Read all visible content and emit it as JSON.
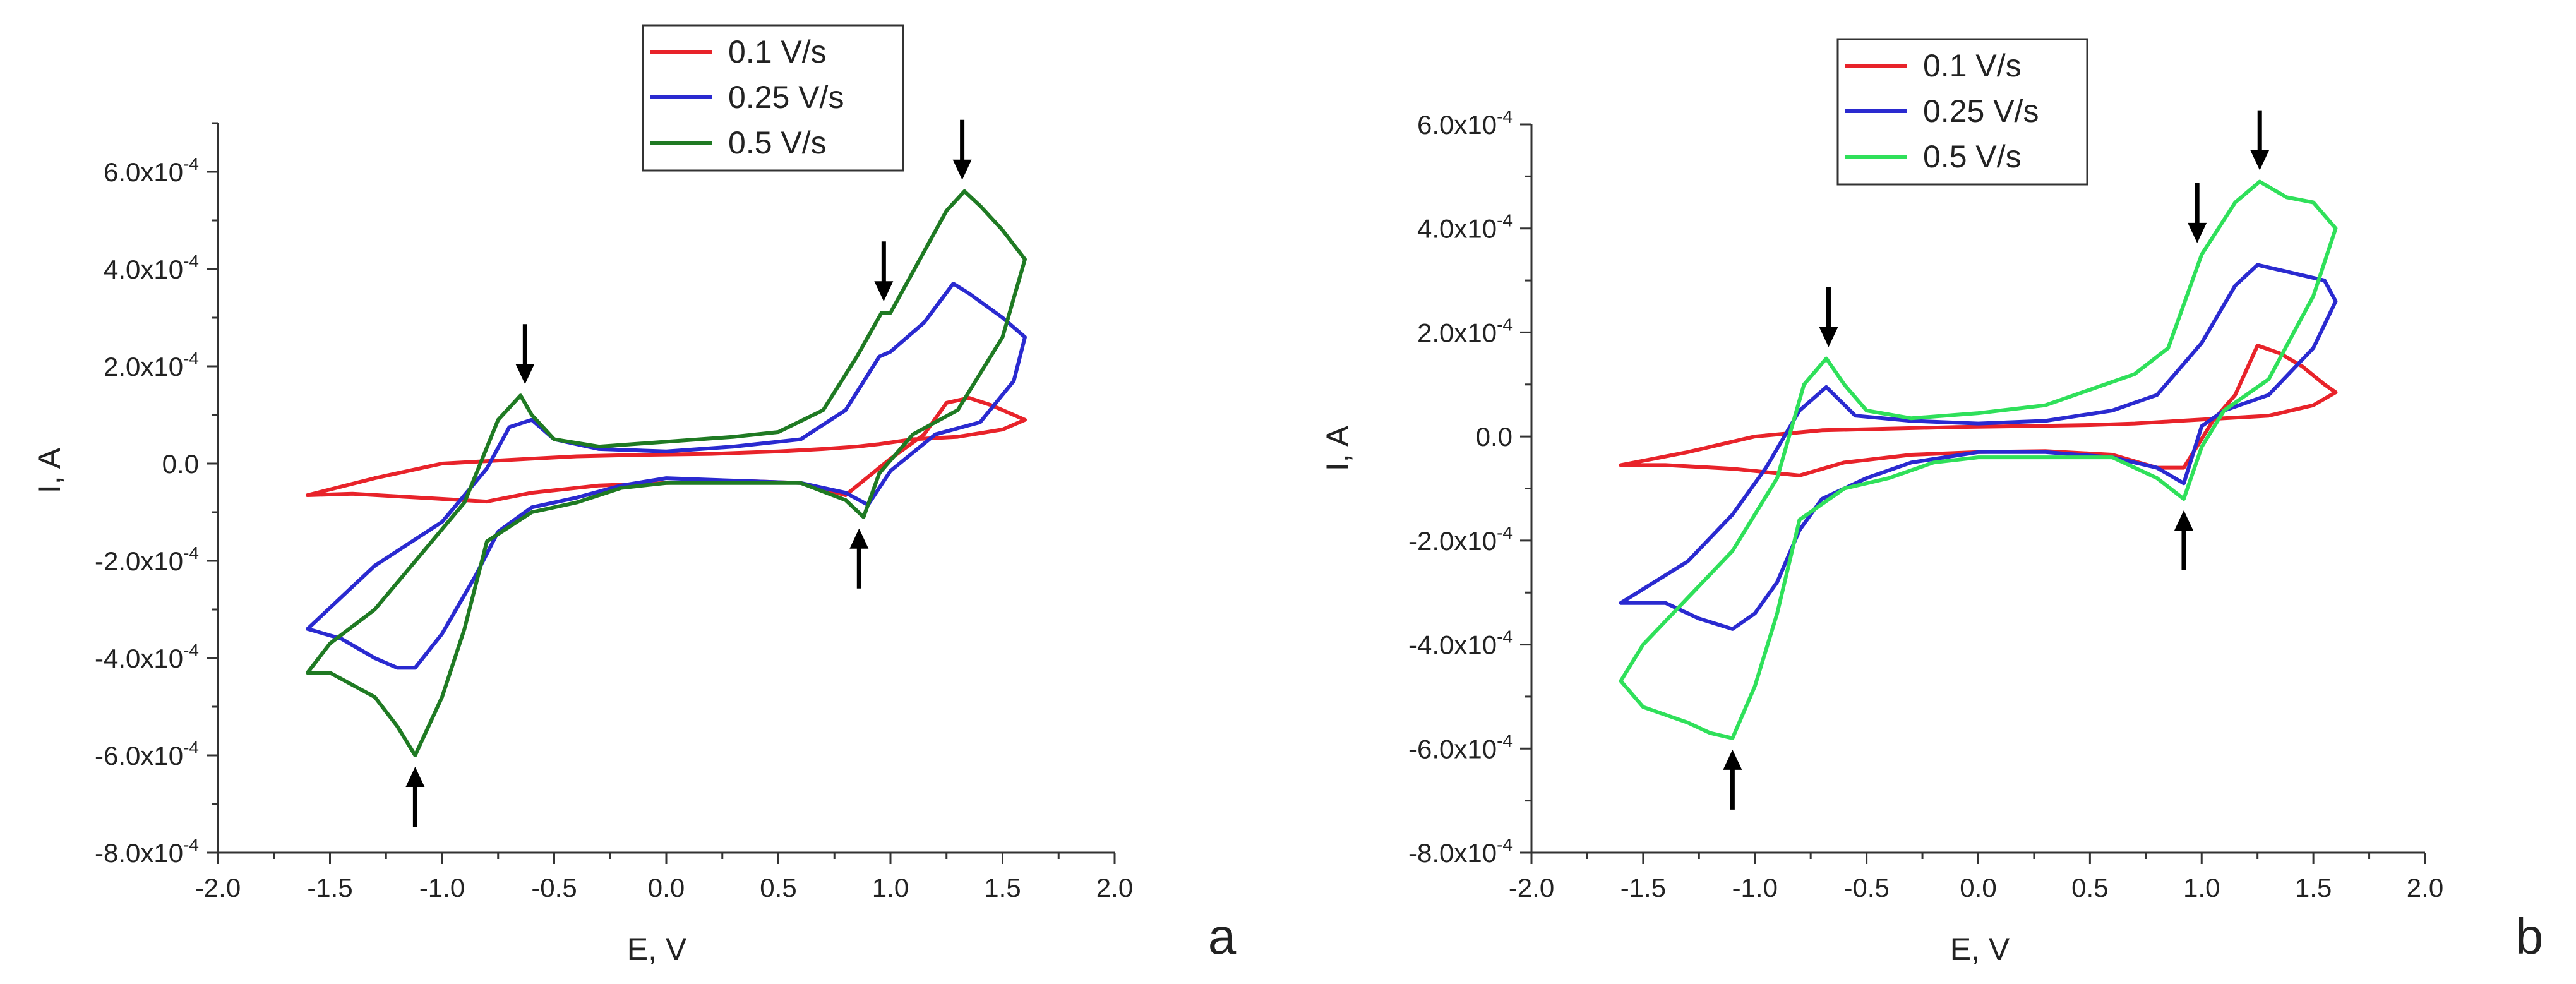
{
  "chart_data": [
    {
      "type": "line",
      "panel_label": "a",
      "xlabel": "E, V",
      "ylabel": "I, A",
      "xlim": [
        -2.0,
        2.0
      ],
      "ylim": [
        -0.0008,
        0.0007
      ],
      "x_ticks": [
        -2.0,
        -1.5,
        -1.0,
        -0.5,
        0.0,
        0.5,
        1.0,
        1.5,
        2.0
      ],
      "x_tick_labels": [
        "-2.0",
        "-1.5",
        "-1.0",
        "-0.5",
        "0.0",
        "0.5",
        "1.0",
        "1.5",
        "2.0"
      ],
      "y_ticks": [
        -0.0008,
        -0.0006,
        -0.0004,
        -0.0002,
        0.0,
        0.0002,
        0.0004,
        0.0006
      ],
      "y_tick_labels": [
        {
          "mantissa": "-8.0x10",
          "exp": "-4"
        },
        {
          "mantissa": "-6.0x10",
          "exp": "-4"
        },
        {
          "mantissa": "-4.0x10",
          "exp": "-4"
        },
        {
          "mantissa": "-2.0x10",
          "exp": "-4"
        },
        {
          "mantissa": "0.0",
          "exp": ""
        },
        {
          "mantissa": "2.0x10",
          "exp": "-4"
        },
        {
          "mantissa": "4.0x10",
          "exp": "-4"
        },
        {
          "mantissa": "6.0x10",
          "exp": "-4"
        }
      ],
      "legend": "top-center",
      "series": [
        {
          "name": "0.1 V/s",
          "color": "#e8232a",
          "x": [
            -1.6,
            -1.4,
            -1.1,
            -0.8,
            -0.6,
            -0.3,
            0.0,
            0.3,
            0.6,
            0.8,
            1.0,
            1.15,
            1.25,
            1.35,
            1.45,
            1.55,
            1.6,
            1.5,
            1.3,
            1.1,
            0.95,
            0.85,
            0.7,
            0.5,
            0.2,
            -0.1,
            -0.4,
            -0.6,
            -0.8,
            -1.0,
            -1.3,
            -1.6
          ],
          "y": [
            -6.5e-05,
            -6.2e-05,
            -7e-05,
            -7.8e-05,
            -6e-05,
            -4.5e-05,
            -4e-05,
            -3.5e-05,
            -4e-05,
            -6.5e-05,
            1e-05,
            6e-05,
            0.000125,
            0.000135,
            0.00012,
            0.0001,
            9e-05,
            7e-05,
            5.5e-05,
            5e-05,
            4e-05,
            3.5e-05,
            3e-05,
            2.5e-05,
            2e-05,
            1.8e-05,
            1.5e-05,
            1e-05,
            5e-06,
            0.0,
            -3e-05,
            -6.5e-05
          ]
        },
        {
          "name": "0.25 V/s",
          "color": "#2a2ad0",
          "x": [
            -1.6,
            -1.45,
            -1.3,
            -1.2,
            -1.12,
            -1.0,
            -0.85,
            -0.75,
            -0.6,
            -0.4,
            -0.2,
            0.0,
            0.3,
            0.6,
            0.8,
            0.9,
            1.0,
            1.2,
            1.4,
            1.55,
            1.6,
            1.5,
            1.35,
            1.28,
            1.15,
            1.0,
            0.95,
            0.8,
            0.6,
            0.3,
            0.0,
            -0.3,
            -0.5,
            -0.6,
            -0.7,
            -0.8,
            -1.0,
            -1.3,
            -1.6
          ],
          "y": [
            -0.00034,
            -0.00036,
            -0.0004,
            -0.00042,
            -0.00042,
            -0.00035,
            -0.00023,
            -0.00014,
            -9e-05,
            -7e-05,
            -4.5e-05,
            -3e-05,
            -3.5e-05,
            -4e-05,
            -6e-05,
            -8.5e-05,
            -1.5e-05,
            6e-05,
            8.5e-05,
            0.00017,
            0.00026,
            0.0003,
            0.00035,
            0.00037,
            0.00029,
            0.00023,
            0.00022,
            0.00011,
            5e-05,
            3.5e-05,
            2.5e-05,
            3e-05,
            5e-05,
            9e-05,
            7.5e-05,
            -1e-05,
            -0.00012,
            -0.00021,
            -0.00034
          ]
        },
        {
          "name": "0.5 V/s",
          "color": "#1f7a23",
          "x": [
            -1.6,
            -1.5,
            -1.3,
            -1.2,
            -1.12,
            -1.0,
            -0.9,
            -0.8,
            -0.6,
            -0.4,
            -0.2,
            0.0,
            0.3,
            0.6,
            0.8,
            0.88,
            0.95,
            1.1,
            1.3,
            1.5,
            1.6,
            1.6,
            1.5,
            1.4,
            1.33,
            1.25,
            1.0,
            0.96,
            0.85,
            0.7,
            0.5,
            0.3,
            0.0,
            -0.3,
            -0.5,
            -0.6,
            -0.65,
            -0.75,
            -0.9,
            -1.1,
            -1.3,
            -1.5,
            -1.6
          ],
          "y": [
            -0.00043,
            -0.00043,
            -0.00048,
            -0.00054,
            -0.0006,
            -0.00048,
            -0.00034,
            -0.00016,
            -0.0001,
            -8e-05,
            -5e-05,
            -4e-05,
            -4e-05,
            -4e-05,
            -7.5e-05,
            -0.00011,
            -2e-05,
            6e-05,
            0.00011,
            0.00026,
            0.00042,
            0.00042,
            0.00048,
            0.00053,
            0.00056,
            0.00052,
            0.00031,
            0.00031,
            0.00022,
            0.00011,
            6.5e-05,
            5.5e-05,
            4.5e-05,
            3.5e-05,
            5e-05,
            0.0001,
            0.00014,
            9e-05,
            -8e-05,
            -0.00019,
            -0.0003,
            -0.00037,
            -0.00043
          ]
        }
      ],
      "annotations": [
        {
          "type": "down-arrow",
          "x": -0.63,
          "y": 0.00014,
          "label": ""
        },
        {
          "type": "down-arrow",
          "x": 0.97,
          "y": 0.00031,
          "label": ""
        },
        {
          "type": "down-arrow",
          "x": 1.32,
          "y": 0.00056,
          "label": ""
        },
        {
          "type": "up-arrow",
          "x": 0.86,
          "y": -0.00011,
          "label": ""
        },
        {
          "type": "up-arrow",
          "x": -1.12,
          "y": -0.0006,
          "label": ""
        }
      ]
    },
    {
      "type": "line",
      "panel_label": "b",
      "xlabel": "E, V",
      "ylabel": "I, A",
      "xlim": [
        -2.0,
        2.0
      ],
      "ylim": [
        -0.0008,
        0.0006
      ],
      "x_ticks": [
        -2.0,
        -1.5,
        -1.0,
        -0.5,
        0.0,
        0.5,
        1.0,
        1.5,
        2.0
      ],
      "x_tick_labels": [
        "-2.0",
        "-1.5",
        "-1.0",
        "-0.5",
        "0.0",
        "0.5",
        "1.0",
        "1.5",
        "2.0"
      ],
      "y_ticks": [
        -0.0008,
        -0.0006,
        -0.0004,
        -0.0002,
        0.0,
        0.0002,
        0.0004,
        0.0006
      ],
      "y_tick_labels": [
        {
          "mantissa": "-8.0x10",
          "exp": "-4"
        },
        {
          "mantissa": "-6.0x10",
          "exp": "-4"
        },
        {
          "mantissa": "-4.0x10",
          "exp": "-4"
        },
        {
          "mantissa": "-2.0x10",
          "exp": "-4"
        },
        {
          "mantissa": "0.0",
          "exp": ""
        },
        {
          "mantissa": "2.0x10",
          "exp": "-4"
        },
        {
          "mantissa": "4.0x10",
          "exp": "-4"
        },
        {
          "mantissa": "6.0x10",
          "exp": "-4"
        }
      ],
      "legend": "top-center",
      "series": [
        {
          "name": "0.1 V/s",
          "color": "#e8232a",
          "x": [
            -1.6,
            -1.4,
            -1.1,
            -0.8,
            -0.6,
            -0.3,
            0.0,
            0.3,
            0.6,
            0.8,
            0.92,
            1.05,
            1.15,
            1.25,
            1.35,
            1.45,
            1.55,
            1.6,
            1.5,
            1.3,
            1.1,
            0.9,
            0.7,
            0.5,
            0.2,
            -0.1,
            -0.4,
            -0.7,
            -1.0,
            -1.3,
            -1.6
          ],
          "y": [
            -5.5e-05,
            -5.5e-05,
            -6.2e-05,
            -7.5e-05,
            -5e-05,
            -3.5e-05,
            -3e-05,
            -2.8e-05,
            -3.5e-05,
            -6e-05,
            -6e-05,
            3e-05,
            8e-05,
            0.000175,
            0.00016,
            0.000135,
            0.0001,
            8.5e-05,
            6e-05,
            4e-05,
            3.5e-05,
            3e-05,
            2.5e-05,
            2.2e-05,
            2e-05,
            1.8e-05,
            1.5e-05,
            1.2e-05,
            0.0,
            -3e-05,
            -5.5e-05
          ]
        },
        {
          "name": "0.25 V/s",
          "color": "#2a2ad0",
          "x": [
            -1.6,
            -1.4,
            -1.25,
            -1.1,
            -1.0,
            -0.9,
            -0.8,
            -0.7,
            -0.5,
            -0.3,
            0.0,
            0.3,
            0.6,
            0.8,
            0.92,
            1.0,
            1.1,
            1.3,
            1.5,
            1.6,
            1.55,
            1.45,
            1.35,
            1.25,
            1.15,
            1.0,
            0.8,
            0.6,
            0.3,
            0.0,
            -0.3,
            -0.55,
            -0.68,
            -0.8,
            -0.95,
            -1.1,
            -1.3,
            -1.6
          ],
          "y": [
            -0.00032,
            -0.00032,
            -0.00035,
            -0.00037,
            -0.00034,
            -0.00028,
            -0.00018,
            -0.00012,
            -8e-05,
            -5e-05,
            -3e-05,
            -3e-05,
            -4e-05,
            -6e-05,
            -9e-05,
            2e-05,
            5e-05,
            8e-05,
            0.00017,
            0.00026,
            0.0003,
            0.00031,
            0.00032,
            0.00033,
            0.00029,
            0.00018,
            8e-05,
            5e-05,
            3e-05,
            2.5e-05,
            3e-05,
            4e-05,
            9.5e-05,
            5e-05,
            -6e-05,
            -0.00015,
            -0.00024,
            -0.00032
          ]
        },
        {
          "name": "0.5 V/s",
          "color": "#2fe05a",
          "x": [
            -1.6,
            -1.5,
            -1.3,
            -1.2,
            -1.1,
            -1.0,
            -0.9,
            -0.8,
            -0.6,
            -0.4,
            -0.2,
            0.0,
            0.3,
            0.6,
            0.8,
            0.92,
            1.0,
            1.1,
            1.3,
            1.5,
            1.6,
            1.6,
            1.5,
            1.38,
            1.26,
            1.15,
            1.0,
            0.85,
            0.7,
            0.5,
            0.3,
            0.0,
            -0.3,
            -0.5,
            -0.6,
            -0.68,
            -0.78,
            -0.9,
            -1.1,
            -1.3,
            -1.5,
            -1.6
          ],
          "y": [
            -0.00047,
            -0.00052,
            -0.00055,
            -0.00057,
            -0.00058,
            -0.00048,
            -0.00034,
            -0.00016,
            -0.0001,
            -8e-05,
            -5e-05,
            -4e-05,
            -4e-05,
            -4e-05,
            -8e-05,
            -0.00012,
            -2e-05,
            5e-05,
            0.00011,
            0.00027,
            0.0004,
            0.0004,
            0.00045,
            0.00046,
            0.00049,
            0.00045,
            0.00035,
            0.00017,
            0.00012,
            9e-05,
            6e-05,
            4.5e-05,
            3.5e-05,
            5e-05,
            0.0001,
            0.00015,
            0.0001,
            -8e-05,
            -0.00022,
            -0.00031,
            -0.0004,
            -0.00047
          ]
        }
      ],
      "annotations": [
        {
          "type": "down-arrow",
          "x": -0.67,
          "y": 0.00015,
          "label": ""
        },
        {
          "type": "down-arrow",
          "x": 0.98,
          "y": 0.00035,
          "label": ""
        },
        {
          "type": "down-arrow",
          "x": 1.26,
          "y": 0.00049,
          "label": ""
        },
        {
          "type": "up-arrow",
          "x": 0.92,
          "y": -0.00012,
          "label": ""
        },
        {
          "type": "up-arrow",
          "x": -1.1,
          "y": -0.00058,
          "label": ""
        }
      ]
    }
  ]
}
